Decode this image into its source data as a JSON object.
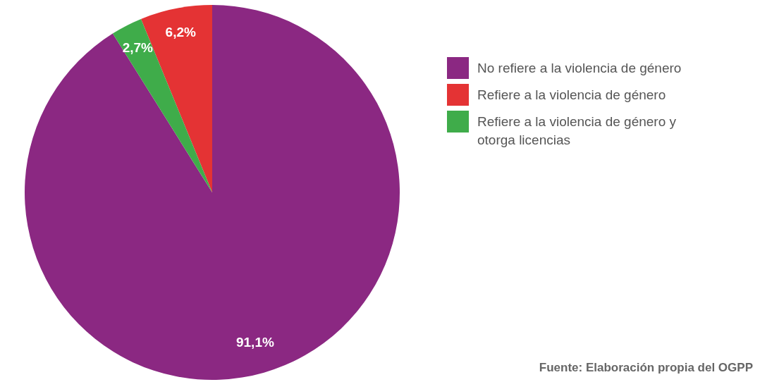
{
  "chart_data": {
    "type": "pie",
    "categories": [
      "No refiere a la violencia de género",
      "Refiere a la violencia de género",
      "Refiere a la violencia de género y otorga licencias"
    ],
    "values": [
      91.1,
      6.2,
      2.7
    ],
    "colors": [
      "#8b2882",
      "#e43334",
      "#3fac4a"
    ],
    "value_labels": [
      "91,1%",
      "6,2%",
      "2,7%"
    ],
    "legend": "right",
    "annotations": [
      "Fuente: Elaboración propia del OGPP"
    ]
  }
}
